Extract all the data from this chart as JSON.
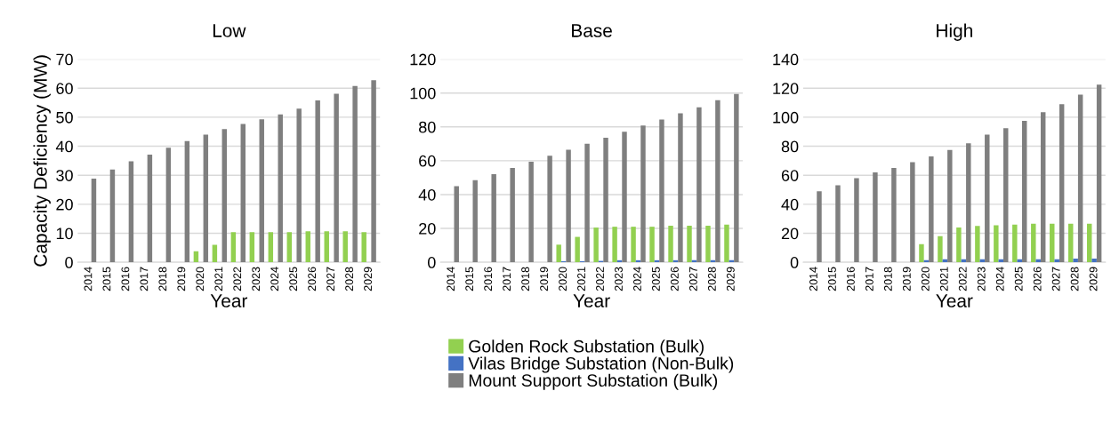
{
  "chart_data": [
    {
      "type": "bar",
      "title": "Low",
      "xlabel": "Year",
      "ylabel": "Capacity Deficiency (MW)",
      "categories": [
        "2014",
        "2015",
        "2016",
        "2017",
        "2018",
        "2019",
        "2020",
        "2021",
        "2022",
        "2023",
        "2024",
        "2025",
        "2026",
        "2027",
        "2028",
        "2029"
      ],
      "ylim": [
        0,
        70
      ],
      "yticks": [
        0,
        10,
        20,
        30,
        40,
        50,
        60,
        70
      ],
      "grid": "y",
      "legend": false,
      "series": [
        {
          "color": "#92d050",
          "values": [
            0,
            0,
            0,
            0,
            0,
            0,
            3.8,
            6,
            10.4,
            10.4,
            10.4,
            10.4,
            10.7,
            10.7,
            10.7,
            10.4
          ]
        },
        {
          "color": "#4472c4",
          "values": [
            0,
            0,
            0,
            0,
            0,
            0,
            0,
            0,
            0,
            0,
            0,
            0,
            0,
            0,
            0,
            0
          ]
        },
        {
          "color": "#7f7f7f",
          "values": [
            28.8,
            32,
            34.8,
            37.1,
            39.5,
            41.8,
            44,
            45.9,
            47.7,
            49.3,
            51,
            53,
            55.8,
            58.1,
            60.8,
            62.8
          ]
        }
      ]
    },
    {
      "type": "bar",
      "title": "Base",
      "xlabel": "Year",
      "categories": [
        "2014",
        "2015",
        "2016",
        "2017",
        "2018",
        "2019",
        "2020",
        "2021",
        "2022",
        "2023",
        "2024",
        "2025",
        "2026",
        "2027",
        "2028",
        "2029"
      ],
      "ylim": [
        0,
        120
      ],
      "yticks": [
        0,
        20,
        40,
        60,
        80,
        100,
        120
      ],
      "grid": "y",
      "legend": "bottom",
      "series": [
        {
          "name": "Golden Rock Substation (Bulk)",
          "color": "#92d050",
          "values": [
            0,
            0,
            0,
            0,
            0,
            0,
            10.4,
            15,
            20.5,
            21,
            21,
            21,
            21.6,
            21.6,
            21.6,
            22.2
          ]
        },
        {
          "name": "Vilas Bridge Substation (Non-Bulk)",
          "color": "#4472c4",
          "values": [
            0,
            0,
            0,
            0,
            0,
            0,
            0.6,
            0.6,
            0.8,
            1.2,
            1.2,
            1.2,
            1.2,
            1.2,
            1.2,
            1.2
          ]
        },
        {
          "name": "Mount Support Substation (Bulk)",
          "color": "#7f7f7f",
          "values": [
            45,
            48.5,
            52,
            55.7,
            59.4,
            63,
            66.5,
            70,
            73.6,
            77.2,
            80.8,
            84.3,
            88,
            91.6,
            95.8,
            99.5
          ]
        }
      ]
    },
    {
      "type": "bar",
      "title": "High",
      "xlabel": "Year",
      "categories": [
        "2014",
        "2015",
        "2016",
        "2017",
        "2018",
        "2019",
        "2020",
        "2021",
        "2022",
        "2023",
        "2024",
        "2025",
        "2026",
        "2027",
        "2028",
        "2029"
      ],
      "ylim": [
        0,
        140
      ],
      "yticks": [
        0,
        20,
        40,
        60,
        80,
        100,
        120,
        140
      ],
      "grid": "y",
      "legend": false,
      "series": [
        {
          "color": "#92d050",
          "values": [
            0,
            0,
            0,
            0,
            0,
            0,
            12.5,
            18,
            24,
            25,
            25.5,
            26,
            26.5,
            26.5,
            26.5,
            26.5
          ]
        },
        {
          "color": "#4472c4",
          "values": [
            0,
            0,
            0,
            0,
            0,
            0,
            1.5,
            2,
            2,
            2,
            2,
            2,
            2,
            2,
            2.5,
            2.5
          ]
        },
        {
          "color": "#7f7f7f",
          "values": [
            49,
            53,
            58,
            62,
            65,
            69,
            73,
            77.5,
            82,
            88,
            92.5,
            97.5,
            103.5,
            109,
            115.5,
            122.5
          ]
        }
      ]
    }
  ]
}
